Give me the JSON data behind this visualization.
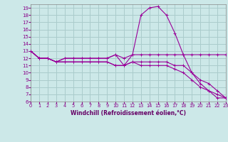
{
  "xlabel": "Windchill (Refroidissement éolien,°C)",
  "background_color": "#cce8e8",
  "grid_color": "#aacccc",
  "line_color": "#990099",
  "xlim": [
    0,
    23
  ],
  "ylim": [
    6,
    19.5
  ],
  "xticks": [
    0,
    1,
    2,
    3,
    4,
    5,
    6,
    7,
    8,
    9,
    10,
    11,
    12,
    13,
    14,
    15,
    16,
    17,
    18,
    19,
    20,
    21,
    22,
    23
  ],
  "yticks": [
    6,
    7,
    8,
    9,
    10,
    11,
    12,
    13,
    14,
    15,
    16,
    17,
    18,
    19
  ],
  "series": [
    {
      "x": [
        0,
        1,
        2,
        3,
        4,
        5,
        6,
        7,
        8,
        9,
        10,
        11,
        12,
        13,
        14,
        15,
        16,
        17,
        18,
        19,
        20,
        21,
        22,
        23
      ],
      "y": [
        13,
        12,
        12,
        11.5,
        12,
        12,
        12,
        12,
        12,
        12,
        12.5,
        11,
        12.5,
        18,
        19,
        19.2,
        18,
        15.5,
        12.5,
        10,
        8.5,
        7.5,
        6.5,
        6.5
      ]
    },
    {
      "x": [
        0,
        1,
        2,
        3,
        4,
        5,
        6,
        7,
        8,
        9,
        10,
        11,
        12,
        13,
        14,
        15,
        16,
        17,
        18,
        19,
        20,
        21,
        22,
        23
      ],
      "y": [
        13,
        12,
        12,
        11.5,
        12,
        12,
        12,
        12,
        12,
        12,
        12.5,
        12,
        12.5,
        12.5,
        12.5,
        12.5,
        12.5,
        12.5,
        12.5,
        12.5,
        12.5,
        12.5,
        12.5,
        12.5
      ]
    },
    {
      "x": [
        0,
        1,
        2,
        3,
        4,
        5,
        6,
        7,
        8,
        9,
        10,
        11,
        12,
        13,
        14,
        15,
        16,
        17,
        18,
        19,
        20,
        21,
        22,
        23
      ],
      "y": [
        13,
        12,
        12,
        11.5,
        11.5,
        11.5,
        11.5,
        11.5,
        11.5,
        11.5,
        11,
        11,
        11.5,
        11.5,
        11.5,
        11.5,
        11.5,
        11,
        11,
        10,
        9,
        8.5,
        7.5,
        6.5
      ]
    },
    {
      "x": [
        0,
        1,
        2,
        3,
        4,
        5,
        6,
        7,
        8,
        9,
        10,
        11,
        12,
        13,
        14,
        15,
        16,
        17,
        18,
        19,
        20,
        21,
        22,
        23
      ],
      "y": [
        13,
        12,
        12,
        11.5,
        11.5,
        11.5,
        11.5,
        11.5,
        11.5,
        11.5,
        11,
        11,
        11.5,
        11,
        11,
        11,
        11,
        10.5,
        10,
        9,
        8,
        7.5,
        7,
        6.5
      ]
    }
  ]
}
